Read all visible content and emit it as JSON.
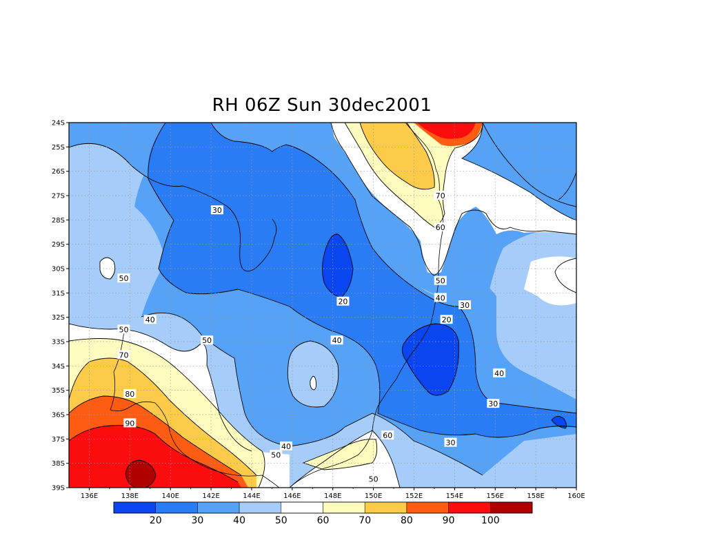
{
  "title": "RH 06Z Sun 30dec2001",
  "lat_labels": [
    "24S",
    "25S",
    "26S",
    "27S",
    "28S",
    "29S",
    "30S",
    "31S",
    "32S",
    "33S",
    "34S",
    "35S",
    "36S",
    "37S",
    "38S",
    "39S"
  ],
  "lon_labels": [
    "136E",
    "138E",
    "140E",
    "142E",
    "144E",
    "146E",
    "148E",
    "150E",
    "152E",
    "154E",
    "156E",
    "158E",
    "160E"
  ],
  "colorbar": {
    "colors": [
      "#0a46f0",
      "#2a7cf5",
      "#55a2f7",
      "#a6ccf9",
      "#ffffff",
      "#fdfbbd",
      "#fdcb4a",
      "#fe5c12",
      "#fc0d0d",
      "#b10000"
    ],
    "labels": [
      "20",
      "30",
      "40",
      "50",
      "60",
      "70",
      "80",
      "90",
      "100"
    ]
  },
  "contour_labels": [
    {
      "text": "30",
      "lon": 142.3,
      "lat": 27.6
    },
    {
      "text": "50",
      "lon": 137.7,
      "lat": 30.4
    },
    {
      "text": "40",
      "lon": 139.0,
      "lat": 32.1
    },
    {
      "text": "50",
      "lon": 137.7,
      "lat": 32.5
    },
    {
      "text": "50",
      "lon": 141.8,
      "lat": 32.95
    },
    {
      "text": "70",
      "lon": 137.7,
      "lat": 33.55
    },
    {
      "text": "80",
      "lon": 138.0,
      "lat": 35.15
    },
    {
      "text": "90",
      "lon": 138.0,
      "lat": 36.35
    },
    {
      "text": "40",
      "lon": 148.2,
      "lat": 32.95
    },
    {
      "text": "20",
      "lon": 148.5,
      "lat": 31.35
    },
    {
      "text": "70",
      "lon": 153.3,
      "lat": 27.0
    },
    {
      "text": "60",
      "lon": 153.3,
      "lat": 28.3
    },
    {
      "text": "50",
      "lon": 153.3,
      "lat": 30.5
    },
    {
      "text": "40",
      "lon": 153.3,
      "lat": 31.2
    },
    {
      "text": "30",
      "lon": 154.5,
      "lat": 31.5
    },
    {
      "text": "20",
      "lon": 153.6,
      "lat": 32.1
    },
    {
      "text": "40",
      "lon": 156.2,
      "lat": 34.3
    },
    {
      "text": "30",
      "lon": 155.9,
      "lat": 35.55
    },
    {
      "text": "30",
      "lon": 153.8,
      "lat": 37.15
    },
    {
      "text": "60",
      "lon": 150.7,
      "lat": 36.85
    },
    {
      "text": "40",
      "lon": 145.7,
      "lat": 37.3
    },
    {
      "text": "50",
      "lon": 145.2,
      "lat": 37.65
    },
    {
      "text": "50",
      "lon": 150.0,
      "lat": 38.65
    }
  ]
}
